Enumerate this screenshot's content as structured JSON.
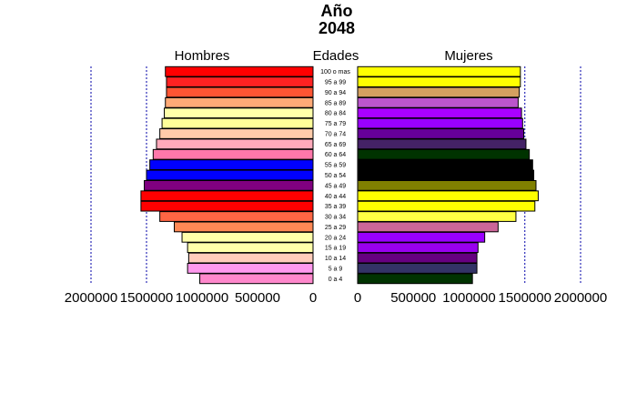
{
  "chart_data": {
    "type": "bar",
    "subtype": "population-pyramid",
    "title": "Año",
    "subtitle": "2048",
    "left_label": "Hombres",
    "center_label": "Edades",
    "right_label": "Mujeres",
    "categories": [
      "0 a 4",
      "5 a 9",
      "10 a 14",
      "15 a 19",
      "20 a 24",
      "25 a 29",
      "30 a 34",
      "35 a 39",
      "40 a 44",
      "45 a 49",
      "50 a 54",
      "55 a 59",
      "60 a 64",
      "65 a 69",
      "70 a 74",
      "75 a 79",
      "80 a 84",
      "85 a 89",
      "90 a 94",
      "95 a 99",
      "100 o mas"
    ],
    "series": [
      {
        "name": "Hombres",
        "values": [
          1020000,
          1130000,
          1120000,
          1130000,
          1180000,
          1250000,
          1380000,
          1550000,
          1550000,
          1520000,
          1500000,
          1470000,
          1440000,
          1410000,
          1380000,
          1360000,
          1340000,
          1330000,
          1320000,
          1320000,
          1330000
        ],
        "colors": [
          "#FF88CC",
          "#FF99EE",
          "#FFCCBB",
          "#FFFFAA",
          "#FFFFAA",
          "#FF8855",
          "#FF6644",
          "#FF0000",
          "#FF0000",
          "#800080",
          "#0000FF",
          "#0000FF",
          "#FF77AA",
          "#FFAABB",
          "#FFCCAA",
          "#FFFF99",
          "#FFFFAA",
          "#FFAA77",
          "#FF5533",
          "#FF2222",
          "#FF0000"
        ]
      },
      {
        "name": "Mujeres",
        "values": [
          1030000,
          1070000,
          1070000,
          1080000,
          1140000,
          1260000,
          1420000,
          1590000,
          1620000,
          1600000,
          1580000,
          1570000,
          1540000,
          1510000,
          1490000,
          1480000,
          1470000,
          1440000,
          1450000,
          1460000,
          1460000
        ],
        "colors": [
          "#003300",
          "#333366",
          "#660080",
          "#9900EE",
          "#9900FF",
          "#CC6699",
          "#FFFF44",
          "#FFFF00",
          "#FFFF00",
          "#808000",
          "#000000",
          "#000000",
          "#003300",
          "#442266",
          "#660099",
          "#9900FF",
          "#AA00FF",
          "#BB55CC",
          "#D4A060",
          "#FFFF00",
          "#FFFF00"
        ]
      }
    ],
    "xlim": [
      0,
      2000000
    ],
    "x_ticks_left": [
      "2000000",
      "1500000",
      "1000000",
      "500000",
      "0"
    ],
    "x_ticks_right": [
      "0",
      "500000",
      "1000000",
      "1500000",
      "2000000"
    ],
    "gridlines": [
      500000,
      1500000,
      2000000
    ],
    "grid_color": "#0000AA"
  }
}
